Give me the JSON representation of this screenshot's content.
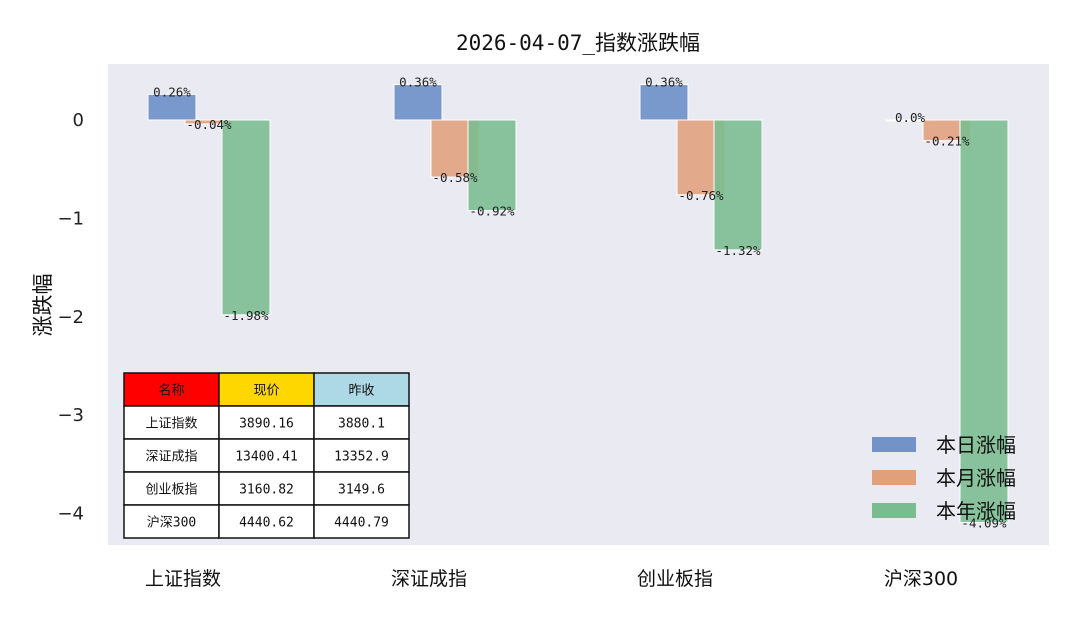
{
  "chart_data": {
    "type": "bar",
    "title": "2026-04-07_指数涨跌幅",
    "xlabel": "",
    "ylabel": "涨跌幅",
    "ylim": [
      -4.3,
      0.55
    ],
    "yticks": [
      0,
      -1,
      -2,
      -3,
      -4
    ],
    "grid": false,
    "legend_position": "bottom-right",
    "categories": [
      "上证指数",
      "深证成指",
      "创业板指",
      "沪深300"
    ],
    "series": [
      {
        "name": "本日涨幅",
        "color": "#7393c8",
        "values": [
          0.26,
          0.36,
          0.36,
          0.0
        ],
        "labels": [
          "0.26%",
          "0.36%",
          "0.36%",
          "0.0%"
        ]
      },
      {
        "name": "本月涨幅",
        "color": "#e0a07c",
        "values": [
          -0.04,
          -0.58,
          -0.76,
          -0.21
        ],
        "labels": [
          "-0.04%",
          "-0.58%",
          "-0.76%",
          "-0.21%"
        ]
      },
      {
        "name": "本年涨幅",
        "color": "#79bc8f",
        "values": [
          -1.98,
          -0.92,
          -1.32,
          -4.09
        ],
        "labels": [
          "-1.98%",
          "-0.92%",
          "-1.32%",
          "-4.09%"
        ]
      }
    ],
    "table": {
      "headers": [
        "名称",
        "现价",
        "昨收"
      ],
      "header_colors": [
        "#ff0000",
        "#ffd700",
        "#add8e6"
      ],
      "rows": [
        [
          "上证指数",
          "3890.16",
          "3880.1"
        ],
        [
          "深证成指",
          "13400.41",
          "13352.9"
        ],
        [
          "创业板指",
          "3160.82",
          "3149.6"
        ],
        [
          "沪深300",
          "4440.62",
          "4440.79"
        ]
      ]
    }
  }
}
